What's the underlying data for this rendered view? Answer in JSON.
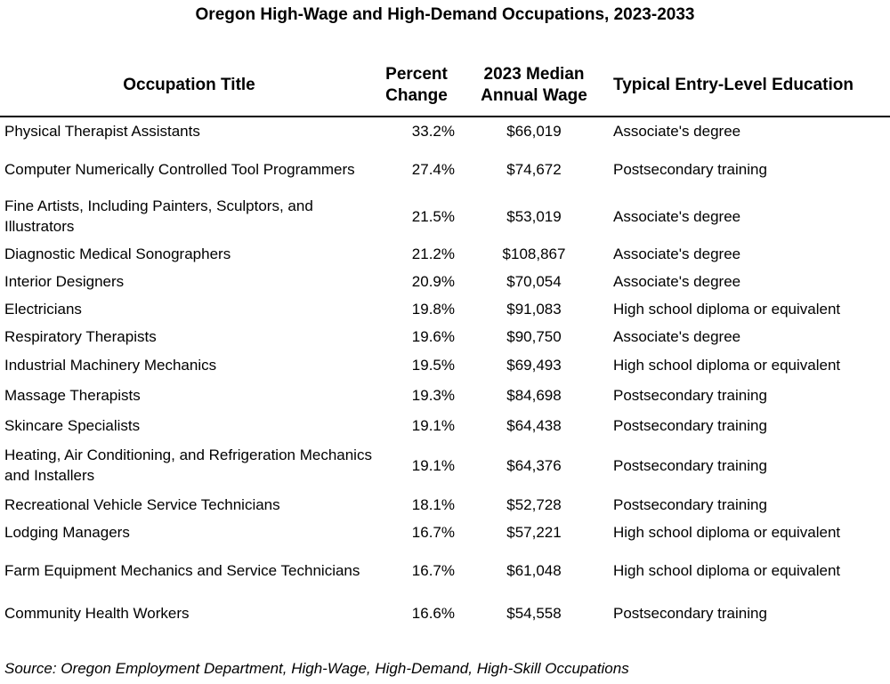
{
  "title": "Oregon High-Wage and High-Demand Occupations, 2023-2033",
  "chart_data": {
    "type": "table",
    "title": "Oregon High-Wage and High-Demand Occupations, 2023-2033",
    "columns": [
      "Occupation Title",
      "Percent Change",
      "2023 Median Annual Wage",
      "Typical Entry-Level Education"
    ],
    "rows": [
      [
        "Physical Therapist Assistants",
        "33.2%",
        "$66,019",
        "Associate's degree"
      ],
      [
        "Computer Numerically Controlled Tool Programmers",
        "27.4%",
        "$74,672",
        "Postsecondary training"
      ],
      [
        "Fine Artists, Including Painters, Sculptors, and Illustrators",
        "21.5%",
        "$53,019",
        "Associate's degree"
      ],
      [
        "Diagnostic Medical Sonographers",
        "21.2%",
        "$108,867",
        "Associate's degree"
      ],
      [
        "Interior Designers",
        "20.9%",
        "$70,054",
        "Associate's degree"
      ],
      [
        "Electricians",
        "19.8%",
        "$91,083",
        "High school diploma or equivalent"
      ],
      [
        "Respiratory Therapists",
        "19.6%",
        "$90,750",
        "Associate's degree"
      ],
      [
        "Industrial Machinery Mechanics",
        "19.5%",
        "$69,493",
        "High school diploma or equivalent"
      ],
      [
        "Massage Therapists",
        "19.3%",
        "$84,698",
        "Postsecondary training"
      ],
      [
        "Skincare Specialists",
        "19.1%",
        "$64,438",
        "Postsecondary training"
      ],
      [
        "Heating, Air Conditioning, and Refrigeration Mechanics and Installers",
        "19.1%",
        "$64,376",
        "Postsecondary training"
      ],
      [
        "Recreational Vehicle Service Technicians",
        "18.1%",
        "$52,728",
        "Postsecondary training"
      ],
      [
        "Lodging Managers",
        "16.7%",
        "$57,221",
        "High school diploma or equivalent"
      ],
      [
        "Farm Equipment Mechanics and Service Technicians",
        "16.7%",
        "$61,048",
        "High school diploma or equivalent"
      ],
      [
        "Community Health Workers",
        "16.6%",
        "$54,558",
        "Postsecondary training"
      ]
    ]
  },
  "headers": {
    "occupation": "Occupation Title",
    "percent_line1": "Percent",
    "percent_line2": "Change",
    "wage_line1": "2023 Median",
    "wage_line2": "Annual Wage",
    "education": "Typical Entry-Level Education"
  },
  "source": "Source: Oregon Employment Department, High-Wage, High-Demand, High-Skill Occupations"
}
